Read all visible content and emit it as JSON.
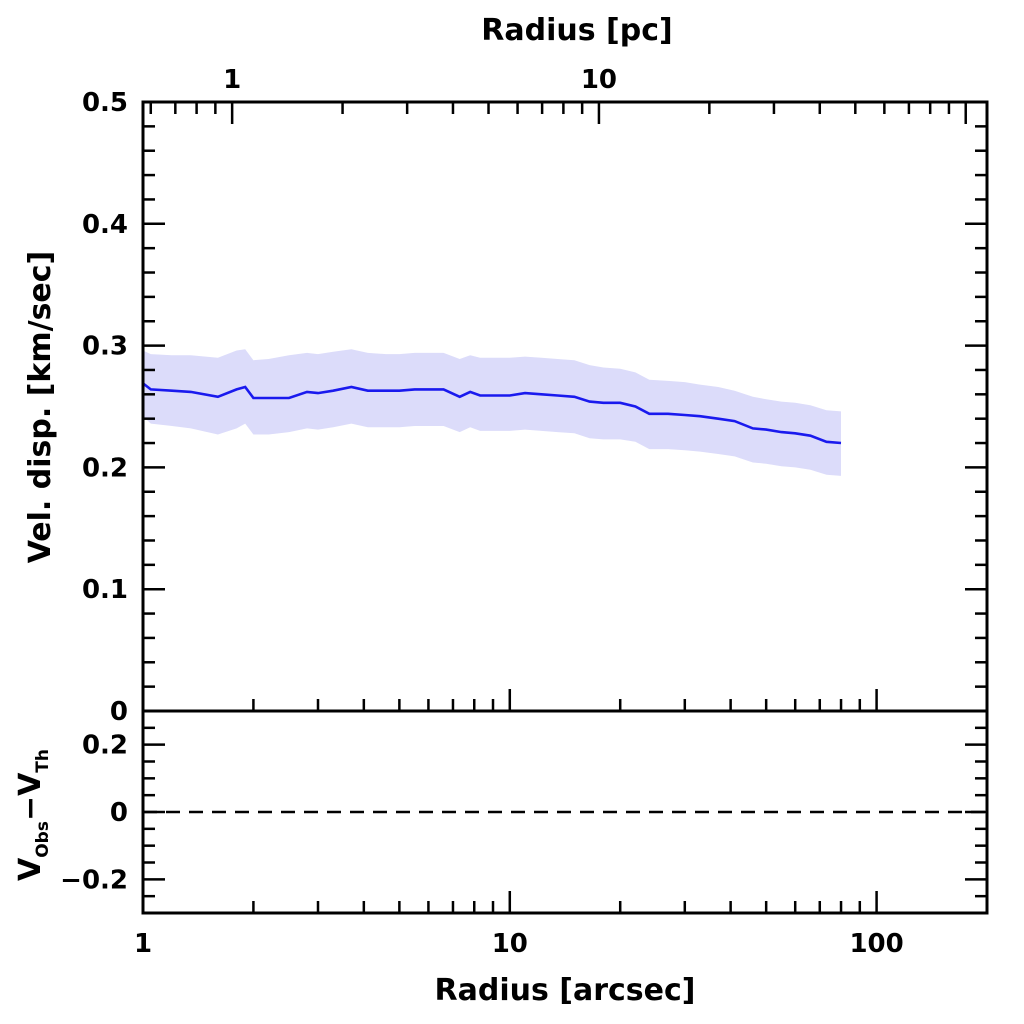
{
  "chart_data": [
    {
      "panel": "top",
      "type": "line",
      "title": "",
      "xlabel": "",
      "ylabel": "Vel. disp. [km/sec]",
      "top_xlabel": "Radius [pc]",
      "xscale": "log",
      "xlim": [
        1,
        200
      ],
      "ylim": [
        0,
        0.5
      ],
      "yticks": [
        "0.5",
        "0.4",
        "0.3",
        "0.2",
        "0.1",
        "0"
      ],
      "ytick_values": [
        0.5,
        0.4,
        0.3,
        0.2,
        0.1,
        0
      ],
      "top_xticks": [
        "1",
        "10"
      ],
      "top_xtick_arcsec": [
        1.75,
        17.5
      ],
      "grid": false,
      "line_color": "#1a1aee",
      "band_color": "#dcdcfa",
      "series": [
        {
          "name": "velocity dispersion",
          "x": [
            1.0,
            1.05,
            1.2,
            1.35,
            1.6,
            1.8,
            1.9,
            2.0,
            2.2,
            2.5,
            2.8,
            3.0,
            3.3,
            3.7,
            4.1,
            4.6,
            5.0,
            5.5,
            6.0,
            6.6,
            7.3,
            7.8,
            8.3,
            9.0,
            10.0,
            11.0,
            12.2,
            13.5,
            15.0,
            16.5,
            18.0,
            20.0,
            22.0,
            24.0,
            27.0,
            30.0,
            33.0,
            37.0,
            41.0,
            46.0,
            50.0,
            55.0,
            60.0,
            66.0,
            73.0,
            80.0
          ],
          "y": [
            0.269,
            0.264,
            0.263,
            0.262,
            0.258,
            0.264,
            0.266,
            0.257,
            0.257,
            0.257,
            0.262,
            0.261,
            0.263,
            0.266,
            0.263,
            0.263,
            0.263,
            0.264,
            0.264,
            0.264,
            0.258,
            0.262,
            0.259,
            0.259,
            0.259,
            0.261,
            0.26,
            0.259,
            0.258,
            0.254,
            0.253,
            0.253,
            0.25,
            0.244,
            0.244,
            0.243,
            0.242,
            0.24,
            0.238,
            0.232,
            0.231,
            0.229,
            0.228,
            0.226,
            0.221,
            0.22
          ],
          "upper": [
            0.296,
            0.293,
            0.292,
            0.292,
            0.29,
            0.296,
            0.297,
            0.288,
            0.289,
            0.292,
            0.294,
            0.293,
            0.295,
            0.297,
            0.294,
            0.293,
            0.293,
            0.294,
            0.294,
            0.294,
            0.289,
            0.292,
            0.29,
            0.29,
            0.29,
            0.291,
            0.29,
            0.289,
            0.288,
            0.284,
            0.282,
            0.281,
            0.278,
            0.272,
            0.271,
            0.27,
            0.268,
            0.266,
            0.263,
            0.258,
            0.256,
            0.254,
            0.253,
            0.251,
            0.247,
            0.246
          ],
          "lower": [
            0.242,
            0.236,
            0.234,
            0.232,
            0.227,
            0.232,
            0.236,
            0.227,
            0.227,
            0.229,
            0.232,
            0.231,
            0.233,
            0.236,
            0.233,
            0.233,
            0.233,
            0.234,
            0.234,
            0.234,
            0.229,
            0.233,
            0.23,
            0.23,
            0.23,
            0.231,
            0.23,
            0.229,
            0.228,
            0.224,
            0.223,
            0.223,
            0.221,
            0.215,
            0.215,
            0.214,
            0.213,
            0.211,
            0.209,
            0.204,
            0.203,
            0.201,
            0.2,
            0.198,
            0.194,
            0.193
          ]
        }
      ]
    },
    {
      "panel": "bottom",
      "type": "line",
      "title": "",
      "xlabel": "Radius [arcsec]",
      "ylabel_main": "V",
      "ylabel_sub1": "Obs",
      "ylabel_mid": "−V",
      "ylabel_sub2": "Th",
      "xscale": "log",
      "xlim": [
        1,
        200
      ],
      "ylim": [
        -0.3,
        0.3
      ],
      "xticks": [
        "1",
        "10",
        "100"
      ],
      "xtick_values": [
        1,
        10,
        100
      ],
      "yticks": [
        "0.2",
        "0",
        "−0.2"
      ],
      "ytick_values": [
        0.2,
        0,
        -0.2
      ],
      "grid": false,
      "reference_line": {
        "y": 0,
        "style": "dashed"
      }
    }
  ]
}
